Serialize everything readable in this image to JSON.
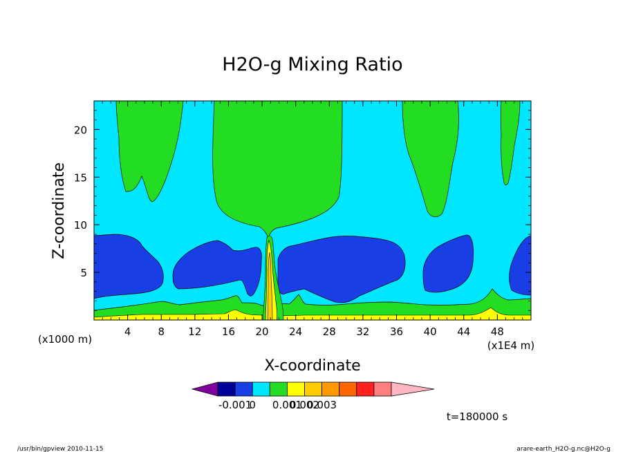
{
  "chart_data": {
    "type": "contour",
    "title": "H2O-g Mixing Ratio",
    "xlabel": "X-coordinate",
    "ylabel": "Z-coordinate",
    "x_unit_left": "(x1000 m)",
    "x_unit_right": "(x1E4 m)",
    "xlim": [
      0,
      52
    ],
    "ylim": [
      0,
      23
    ],
    "x_ticks": [
      4,
      8,
      12,
      16,
      20,
      24,
      28,
      32,
      36,
      40,
      44,
      48
    ],
    "y_ticks": [
      5,
      10,
      15,
      20
    ],
    "colorbar": {
      "colors": [
        "#8000a0",
        "#000099",
        "#1a3ee6",
        "#00e6ff",
        "#22dd22",
        "#ffff00",
        "#ffcc00",
        "#ff9900",
        "#ff6600",
        "#ff2020",
        "#ff7f7f",
        "#ffb6c1"
      ],
      "labels": [
        "-0.001",
        "0",
        "0.001",
        "0.002",
        "0.003"
      ]
    },
    "levels": {
      "background": "#00e6ff",
      "moist_blue": "#1a3ee6",
      "green": "#22dd22",
      "yellow": "#ffff00",
      "orange": "#ffcc00"
    },
    "time_label": "t=180000  s",
    "footer_left": "/usr/bin/gpview  2010-11-15",
    "footer_right": "arare-earth_H2O-g.nc@H2O-g"
  }
}
